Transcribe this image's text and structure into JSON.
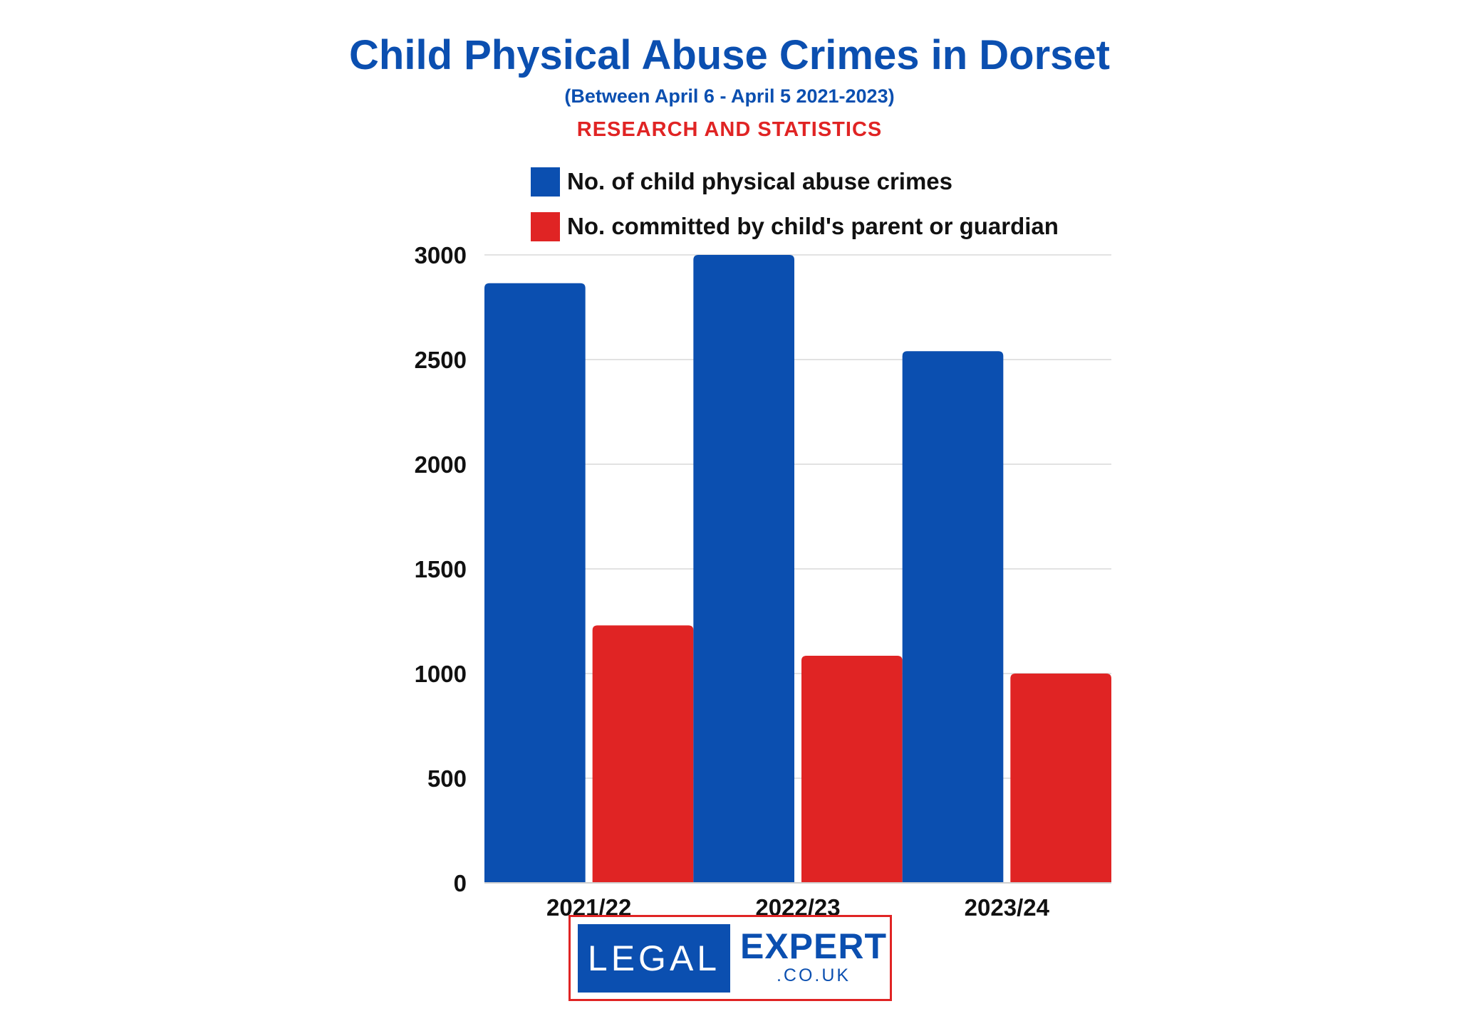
{
  "header": {
    "title": "Child Physical Abuse Crimes in Dorset",
    "subtitle": "(Between April 6 - April 5 2021-2023)",
    "tagline": "RESEARCH AND STATISTICS"
  },
  "logo": {
    "left_text": "LEGAL",
    "right_text": "EXPERT",
    "domain_text": ".CO.UK"
  },
  "colors": {
    "blue": "#0b4fb0",
    "red": "#e02424",
    "grid": "#e2e2e2"
  },
  "chart_data": {
    "type": "bar",
    "title": "Child Physical Abuse Crimes in Dorset",
    "subtitle": "(Between April 6 - April 5 2021-2023)",
    "categories": [
      "2021/22",
      "2022/23",
      "2023/24"
    ],
    "series": [
      {
        "name": "No. of child physical abuse crimes",
        "color": "#0b4fb0",
        "values": [
          2865,
          3000,
          2540
        ]
      },
      {
        "name": "No. committed by child's parent or guardian",
        "color": "#e02424",
        "values": [
          1230,
          1085,
          1000
        ]
      }
    ],
    "ylim": [
      0,
      3000
    ],
    "yticks": [
      0,
      500,
      1000,
      1500,
      2000,
      2500,
      3000
    ],
    "grid": true,
    "legend_position": "top-center",
    "xlabel": "",
    "ylabel": ""
  }
}
